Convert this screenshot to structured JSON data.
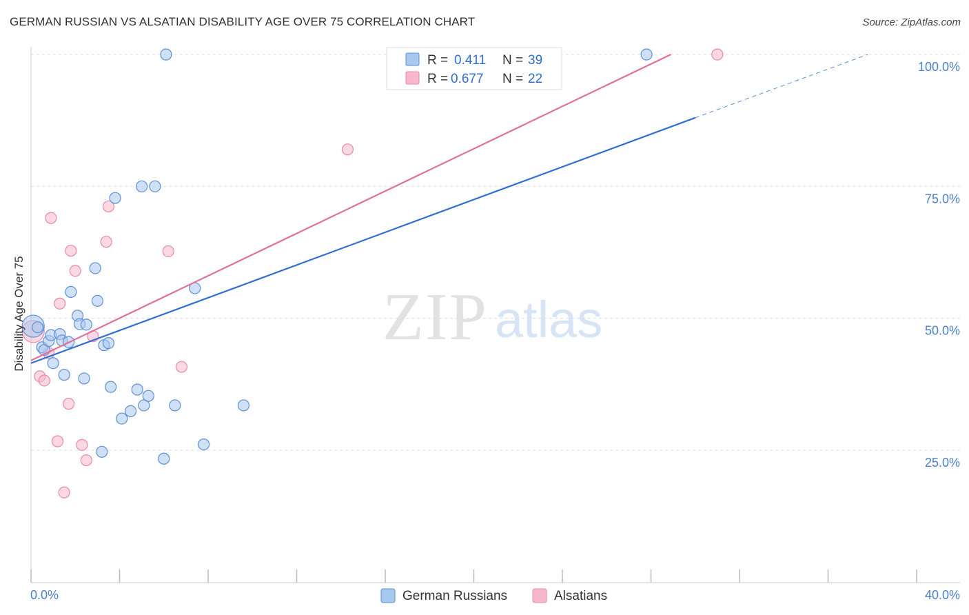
{
  "title": "GERMAN RUSSIAN VS ALSATIAN DISABILITY AGE OVER 75 CORRELATION CHART",
  "source": "Source: ZipAtlas.com",
  "watermark": {
    "zip": "ZIP",
    "atlas": "atlas"
  },
  "colors": {
    "blue_fill": "#a9c8ee",
    "blue_stroke": "#5b8fd6",
    "blue_line": "#2f6fcf",
    "pink_fill": "#f7b8cb",
    "pink_stroke": "#e58aa6",
    "pink_line": "#e0709a",
    "axis_label": "#4a7fc9",
    "grid": "#dcdcdc"
  },
  "legend": {
    "rows": [
      {
        "r_label": "R = ",
        "r_value": "0.411",
        "n_label": "N = ",
        "n_value": "39"
      },
      {
        "r_label": "R = ",
        "r_value": "0.677",
        "n_label": "N = ",
        "n_value": "22"
      }
    ]
  },
  "bottom_legend": {
    "series1": "German Russians",
    "series2": "Alsatians"
  },
  "chart_data": {
    "type": "scatter",
    "title": "GERMAN RUSSIAN VS ALSATIAN DISABILITY AGE OVER 75 CORRELATION CHART",
    "xlabel": "",
    "ylabel": "Disability Age Over 75",
    "xlim": [
      0,
      40
    ],
    "ylim": [
      0,
      104
    ],
    "x_tick_labels": {
      "min": "0.0%",
      "max": "40.0%"
    },
    "y_ticks": [
      {
        "value": 25,
        "label": "25.0%"
      },
      {
        "value": 50,
        "label": "50.0%"
      },
      {
        "value": 75,
        "label": "75.0%"
      },
      {
        "value": 100,
        "label": "100.0%"
      }
    ],
    "series": [
      {
        "name": "German Russians",
        "color": "#a9c8ee",
        "R": 0.411,
        "N": 39,
        "trend": {
          "x0": 0,
          "y0": 41.5,
          "x1": 30.0,
          "y1": 88.0,
          "dash_to_x": 37.8,
          "dash_to_y": 100.0
        },
        "points": [
          [
            0.1,
            48.5,
            "large"
          ],
          [
            0.3,
            48.3
          ],
          [
            0.5,
            44.5
          ],
          [
            0.6,
            44.0
          ],
          [
            0.8,
            45.7
          ],
          [
            0.9,
            46.8
          ],
          [
            1.0,
            41.5
          ],
          [
            1.3,
            47.0
          ],
          [
            1.4,
            45.8
          ],
          [
            1.5,
            39.3
          ],
          [
            1.7,
            45.5
          ],
          [
            1.8,
            55.0
          ],
          [
            2.1,
            50.5
          ],
          [
            2.2,
            48.9
          ],
          [
            2.4,
            38.6
          ],
          [
            2.5,
            48.8
          ],
          [
            2.9,
            59.5
          ],
          [
            3.0,
            53.3
          ],
          [
            3.2,
            24.7
          ],
          [
            3.3,
            44.9
          ],
          [
            3.5,
            45.3
          ],
          [
            3.6,
            37.0
          ],
          [
            3.8,
            72.8
          ],
          [
            4.1,
            31.0
          ],
          [
            4.5,
            32.4
          ],
          [
            4.8,
            36.5
          ],
          [
            5.0,
            75.0
          ],
          [
            5.1,
            33.5
          ],
          [
            5.3,
            35.3
          ],
          [
            5.6,
            75.0
          ],
          [
            6.0,
            23.4
          ],
          [
            6.1,
            100.0
          ],
          [
            6.5,
            33.5
          ],
          [
            7.4,
            55.7
          ],
          [
            7.8,
            26.1
          ],
          [
            9.6,
            33.5
          ],
          [
            27.8,
            100.0
          ]
        ]
      },
      {
        "name": "Alsatians",
        "color": "#f7b8cb",
        "R": 0.677,
        "N": 22,
        "trend": {
          "x0": 0,
          "y0": 42.0,
          "x1": 28.9,
          "y1": 100.0
        },
        "points": [
          [
            0.1,
            47.5,
            "large"
          ],
          [
            0.4,
            39.0
          ],
          [
            0.6,
            38.2
          ],
          [
            0.8,
            43.4
          ],
          [
            0.9,
            69.0
          ],
          [
            1.2,
            26.7
          ],
          [
            1.3,
            52.8
          ],
          [
            1.5,
            17.0
          ],
          [
            1.7,
            33.8
          ],
          [
            1.8,
            62.8
          ],
          [
            2.0,
            59.0
          ],
          [
            2.3,
            26.0
          ],
          [
            2.5,
            23.1
          ],
          [
            2.8,
            46.6
          ],
          [
            3.4,
            64.5
          ],
          [
            3.5,
            71.2
          ],
          [
            6.2,
            62.7
          ],
          [
            6.8,
            40.8
          ],
          [
            14.3,
            82.0
          ],
          [
            31.0,
            100.0
          ]
        ]
      }
    ]
  }
}
